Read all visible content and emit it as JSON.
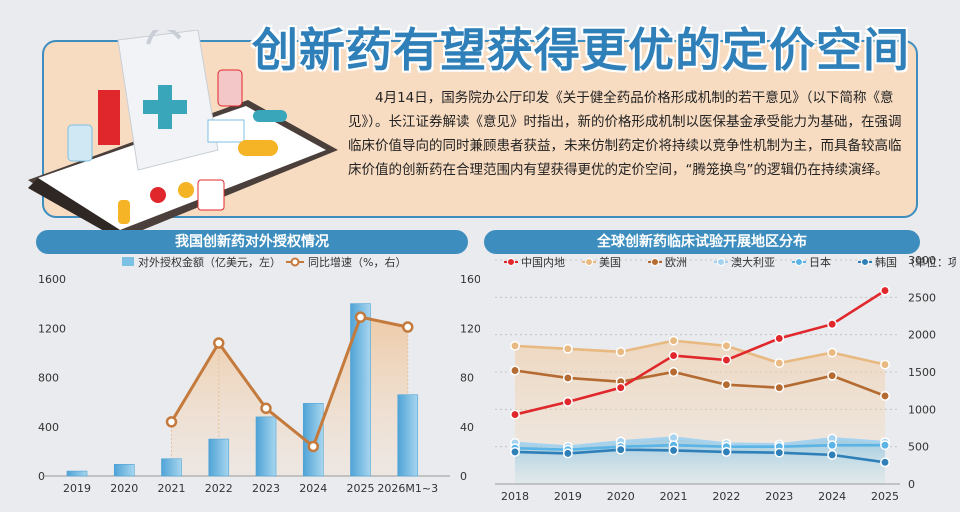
{
  "header": {
    "title": "创新药有望获得更优的定价空间",
    "intro": "4月14日，国务院办公厅印发《关于健全药品价格形成机制的若干意见》（以下简称《意见》）。长江证券解读《意见》时指出，新的价格形成机制以医保基金承受能力为基础，在强调临床价值导向的同时兼顾患者获益，未来仿制药定价将持续以竞争性机制为主，而具备较高临床价值的创新药在合理范围内有望获得更优的定价空间，“腾笼换鸟”的逻辑仍在持续演绎。"
  },
  "colors": {
    "accent": "#3d8ebf",
    "bar": "#7cc0e3",
    "growth_line": "#c47a3c",
    "china": "#e0282c",
    "usa": "#e8b980",
    "europe": "#b46a30",
    "australia": "#a5d2ee",
    "japan": "#5ab4e6",
    "korea": "#2f7fb9"
  },
  "chart_data": [
    {
      "type": "bar",
      "title": "我国创新药对外授权情况",
      "categories": [
        "2019",
        "2020",
        "2021",
        "2022",
        "2023",
        "2024",
        "2025",
        "2026M1~3"
      ],
      "series": [
        {
          "name": "对外授权金额（亿美元，左）",
          "type": "bar",
          "axis": "left",
          "values": [
            40,
            95,
            140,
            300,
            480,
            590,
            1400,
            660
          ]
        },
        {
          "name": "同比增速（%，右）",
          "type": "line",
          "axis": "right",
          "values": [
            null,
            null,
            44,
            108,
            55,
            24,
            129,
            121
          ]
        }
      ],
      "ylim_left": [
        0,
        1600
      ],
      "yticks_left": [
        "0",
        "400",
        "800",
        "1200",
        "1600"
      ],
      "ylim_right": [
        0,
        160
      ],
      "yticks_right": [
        "0",
        "40",
        "80",
        "120",
        "160"
      ],
      "legend_position": "top"
    },
    {
      "type": "line",
      "title": "全球创新药临床试验开展地区分布",
      "categories": [
        "2018",
        "2019",
        "2020",
        "2021",
        "2022",
        "2023",
        "2024",
        "2025"
      ],
      "series": [
        {
          "name": "中国内地",
          "values": [
            930,
            1100,
            1290,
            1720,
            1660,
            1950,
            2140,
            2590
          ]
        },
        {
          "name": "美国",
          "values": [
            1850,
            1810,
            1770,
            1920,
            1850,
            1620,
            1760,
            1600
          ]
        },
        {
          "name": "欧洲",
          "values": [
            1520,
            1420,
            1370,
            1500,
            1330,
            1290,
            1450,
            1180
          ]
        },
        {
          "name": "澳大利亚",
          "values": [
            550,
            500,
            570,
            620,
            540,
            530,
            610,
            560
          ]
        },
        {
          "name": "日本",
          "values": [
            480,
            460,
            500,
            520,
            500,
            500,
            520,
            520
          ]
        },
        {
          "name": "韩国",
          "values": [
            430,
            410,
            460,
            450,
            430,
            420,
            390,
            290
          ]
        }
      ],
      "unit_label": "（单位：项）",
      "ylim": [
        0,
        3000
      ],
      "yticks": [
        "0",
        "500",
        "1000",
        "1500",
        "2000",
        "2500",
        "3000"
      ],
      "legend_position": "top"
    }
  ]
}
